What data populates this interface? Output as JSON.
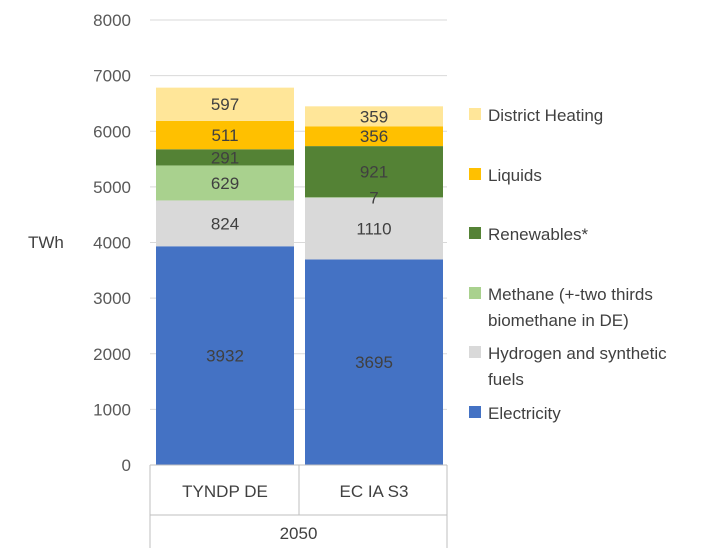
{
  "chart_data": {
    "type": "bar",
    "stacked": true,
    "ylabel": "TWh",
    "ylim": [
      0,
      8000
    ],
    "yticks": [
      0,
      1000,
      2000,
      3000,
      4000,
      5000,
      6000,
      7000,
      8000
    ],
    "grid": true,
    "legend_position": "right",
    "categories": [
      "TYNDP DE",
      "EC IA S3"
    ],
    "group_label": "2050",
    "series": [
      {
        "name": "Electricity",
        "color": "#4472C4",
        "values": [
          3932,
          3695
        ]
      },
      {
        "name": "Hydrogen and synthetic fuels",
        "color": "#D9D9D9",
        "values": [
          824,
          1110
        ]
      },
      {
        "name": "Methane (+-two thirds biomethane in DE)",
        "color": "#A9D18E",
        "values": [
          629,
          7
        ]
      },
      {
        "name": "Renewables*",
        "color": "#548235",
        "values": [
          291,
          921
        ]
      },
      {
        "name": "Liquids",
        "color": "#FFC000",
        "values": [
          511,
          356
        ]
      },
      {
        "name": "District Heating",
        "color": "#FFE699",
        "values": [
          597,
          359
        ]
      }
    ]
  }
}
